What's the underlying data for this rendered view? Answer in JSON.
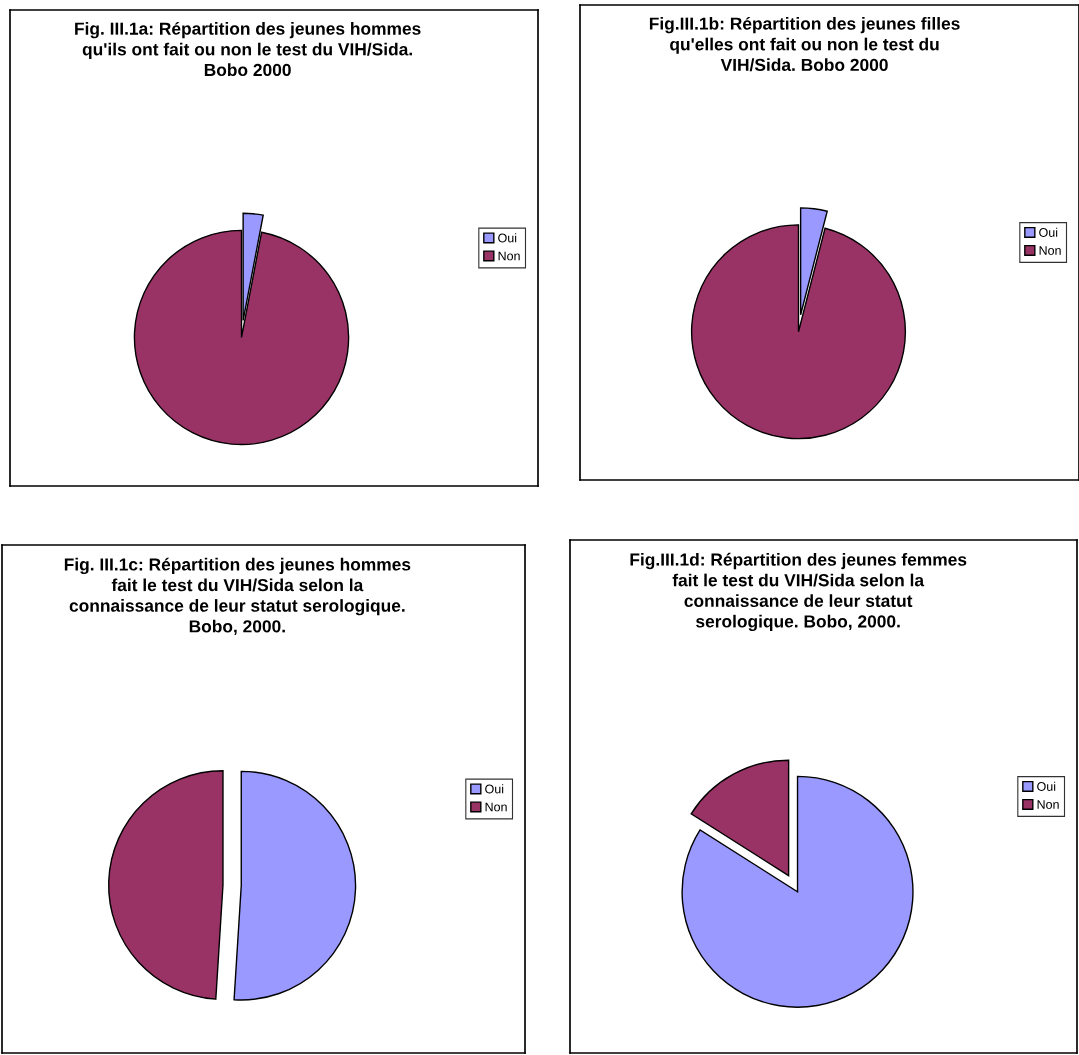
{
  "chart_data": [
    {
      "type": "pie",
      "title": "Fig. III.1a: Répartition des jeunes hommes\nqu'ils ont fait ou non le test du VIH/Sida.\nBobo 2000",
      "categories": [
        "Oui",
        "Non"
      ],
      "values": [
        3,
        97
      ],
      "colors": [
        "#9999ff",
        "#993366"
      ],
      "legend": "right"
    },
    {
      "type": "pie",
      "title": "Fig.III.1b: Répartition des jeunes filles\nqu'elles ont fait ou non le test du\nVIH/Sida. Bobo 2000",
      "categories": [
        "Oui",
        "Non"
      ],
      "values": [
        4,
        96
      ],
      "colors": [
        "#9999ff",
        "#993366"
      ],
      "legend": "right"
    },
    {
      "type": "pie",
      "title": "Fig. III.1c: Répartition des jeunes hommes\nfait le test du VIH/Sida selon la\nconnaissance de leur statut serologique.\nBobo, 2000.",
      "categories": [
        "Oui",
        "Non"
      ],
      "values": [
        51,
        49
      ],
      "colors": [
        "#9999ff",
        "#993366"
      ],
      "legend": "right"
    },
    {
      "type": "pie",
      "title": "Fig.III.1d: Répartition des jeunes femmes\nfait le test du VIH/Sida selon la\nconnaissance de leur statut\nserologique. Bobo, 2000.",
      "categories": [
        "Oui",
        "Non"
      ],
      "values": [
        84,
        16
      ],
      "colors": [
        "#9999ff",
        "#993366"
      ],
      "legend": "right"
    }
  ]
}
